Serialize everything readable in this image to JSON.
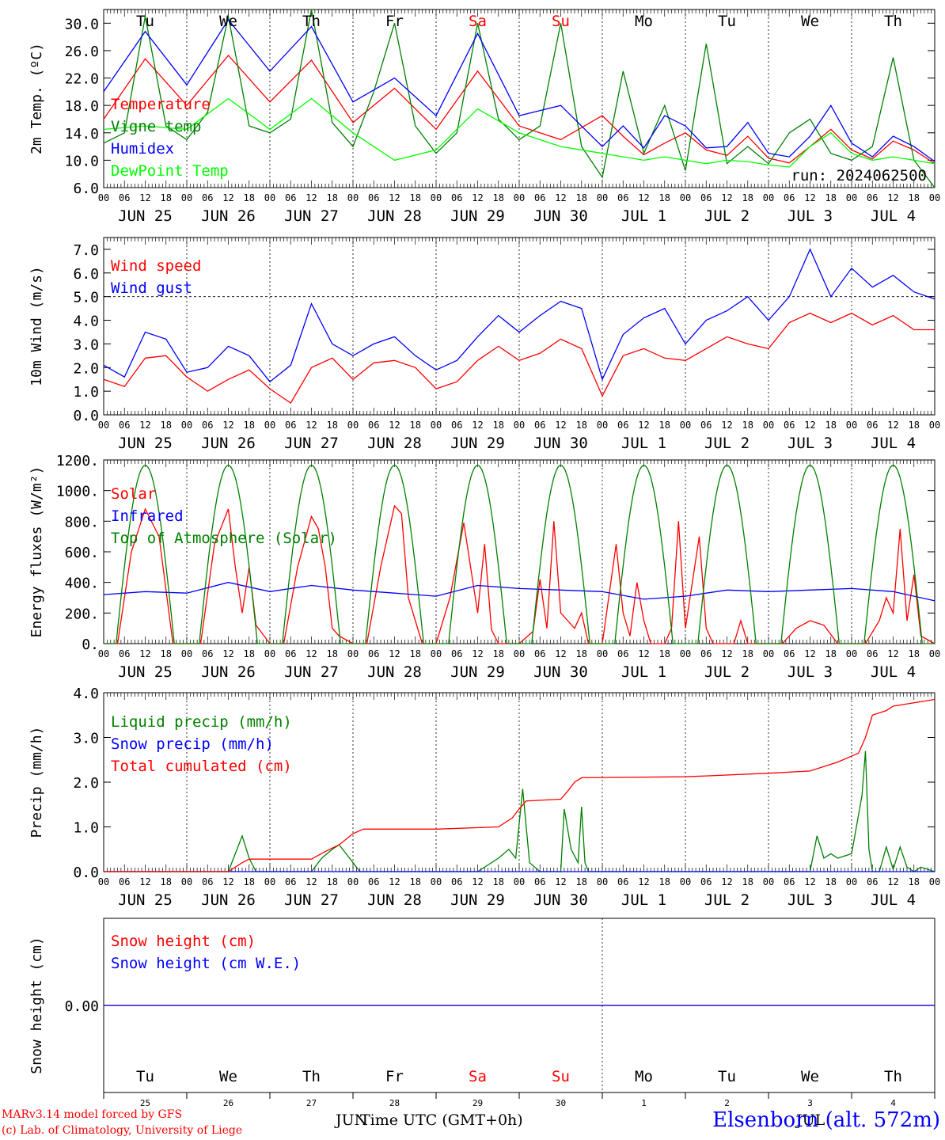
{
  "meta": {
    "station": "Elsenborn (alt. 572m)",
    "credit_line1": "MARv3.14 model forced by GFS",
    "credit_line2": "(c) Lab. of Climatology, University of Liege",
    "run_label": "run: 2024062500",
    "xlabel": "Time UTC (GMT+0h)",
    "footer_month_left": "JUN",
    "footer_month_right": "JUL"
  },
  "axis": {
    "hour_ticks": [
      "00",
      "06",
      "12",
      "18"
    ],
    "day_labels": [
      "JUN 25",
      "JUN 26",
      "JUN 27",
      "JUN 28",
      "JUN 29",
      "JUN 30",
      "JUL  1",
      "JUL  2",
      "JUL  3",
      "JUL  4"
    ],
    "weekdays": [
      "Tu",
      "We",
      "Th",
      "Fr",
      "Sa",
      "Su",
      "Mo",
      "Tu",
      "We",
      "Th"
    ],
    "weekday_colors": [
      "#000000",
      "#000000",
      "#000000",
      "#000000",
      "#ff0000",
      "#ff0000",
      "#000000",
      "#000000",
      "#000000",
      "#000000"
    ],
    "day_numbers": [
      "25",
      "26",
      "27",
      "28",
      "29",
      "30",
      "1",
      "2",
      "3",
      "4"
    ],
    "x_range_hours": [
      0,
      240
    ]
  },
  "chart_data": [
    {
      "type": "line",
      "ylabel": "2m Temp. (ºC)",
      "ylim": [
        6,
        32
      ],
      "yticks": [
        "6.0",
        "10.0",
        "14.0",
        "18.0",
        "22.0",
        "26.0",
        "30.0"
      ],
      "show_weekdays": true,
      "series": [
        {
          "name": "Temperature",
          "color": "#ff0000",
          "x": [
            0,
            12,
            24,
            36,
            48,
            60,
            72,
            84,
            96,
            108,
            120,
            132,
            144,
            150,
            156,
            162,
            168,
            174,
            180,
            186,
            192,
            198,
            204,
            210,
            216,
            222,
            228,
            234,
            240
          ],
          "values": [
            16.0,
            24.8,
            18.0,
            25.3,
            18.5,
            24.6,
            15.5,
            20.5,
            14.5,
            23.0,
            15.0,
            13.0,
            16.5,
            13.5,
            10.8,
            12.5,
            14.0,
            11.5,
            10.7,
            13.5,
            10.3,
            9.6,
            12.0,
            14.5,
            11.5,
            10.2,
            12.8,
            11.5,
            9.5
          ]
        },
        {
          "name": "Vigne temp",
          "color": "#008000",
          "x": [
            0,
            6,
            12,
            18,
            24,
            30,
            36,
            42,
            48,
            54,
            60,
            66,
            72,
            78,
            84,
            90,
            96,
            102,
            108,
            114,
            120,
            126,
            132,
            138,
            144,
            150,
            156,
            162,
            168,
            174,
            180,
            186,
            192,
            198,
            204,
            210,
            216,
            222,
            228,
            234,
            240
          ],
          "values": [
            12.5,
            14.0,
            31.0,
            15.0,
            13.0,
            17.0,
            31.0,
            15.0,
            14.0,
            16.0,
            32.0,
            15.5,
            12.0,
            20.0,
            30.0,
            15.0,
            11.0,
            14.0,
            30.0,
            16.0,
            13.0,
            15.0,
            30.0,
            12.0,
            7.5,
            23.0,
            11.0,
            18.0,
            8.5,
            27.0,
            9.5,
            12.0,
            9.5,
            14.0,
            16.0,
            11.0,
            10.0,
            12.0,
            25.0,
            10.0,
            6.0
          ]
        },
        {
          "name": "Humidex",
          "color": "#0000ff",
          "x": [
            0,
            12,
            24,
            36,
            48,
            60,
            72,
            84,
            96,
            108,
            120,
            132,
            144,
            150,
            156,
            162,
            168,
            174,
            180,
            186,
            192,
            198,
            204,
            210,
            216,
            222,
            228,
            234,
            240
          ],
          "values": [
            20.0,
            28.8,
            21.0,
            30.5,
            23.0,
            29.5,
            18.5,
            22.0,
            16.5,
            28.5,
            16.5,
            18.0,
            12.0,
            15.0,
            11.8,
            16.5,
            15.0,
            11.8,
            12.0,
            15.5,
            11.0,
            10.5,
            13.5,
            18.0,
            12.5,
            10.5,
            13.5,
            12.0,
            9.8
          ]
        },
        {
          "name": "DewPoint Temp",
          "color": "#00ff00",
          "x": [
            0,
            12,
            24,
            36,
            48,
            60,
            72,
            84,
            96,
            108,
            120,
            132,
            144,
            150,
            156,
            162,
            168,
            174,
            180,
            186,
            192,
            198,
            204,
            210,
            216,
            222,
            228,
            234,
            240
          ],
          "values": [
            14.5,
            15.0,
            14.5,
            19.0,
            14.5,
            19.0,
            14.0,
            10.0,
            11.5,
            17.5,
            14.0,
            12.0,
            11.0,
            10.5,
            10.0,
            10.5,
            10.0,
            9.5,
            10.0,
            9.8,
            9.3,
            9.0,
            12.0,
            14.0,
            11.0,
            10.0,
            10.5,
            10.0,
            9.5
          ]
        }
      ]
    },
    {
      "type": "line",
      "ylabel": "10m Wind (m/s)",
      "ylim": [
        0,
        7.5
      ],
      "yticks": [
        "0.0",
        "1.0",
        "2.0",
        "3.0",
        "4.0",
        "5.0",
        "6.0",
        "7.0"
      ],
      "dashed_y": 5.0,
      "show_weekdays": false,
      "series": [
        {
          "name": "Wind speed",
          "color": "#ff0000",
          "x": [
            0,
            6,
            12,
            18,
            24,
            30,
            36,
            42,
            48,
            54,
            60,
            66,
            72,
            78,
            84,
            90,
            96,
            102,
            108,
            114,
            120,
            126,
            132,
            138,
            144,
            150,
            156,
            162,
            168,
            174,
            180,
            186,
            192,
            198,
            204,
            210,
            216,
            222,
            228,
            234,
            240
          ],
          "values": [
            1.5,
            1.2,
            2.4,
            2.5,
            1.6,
            1.0,
            1.5,
            1.9,
            1.1,
            0.5,
            2.0,
            2.4,
            1.5,
            2.2,
            2.3,
            2.0,
            1.1,
            1.4,
            2.3,
            2.9,
            2.3,
            2.6,
            3.2,
            2.8,
            0.8,
            2.5,
            2.8,
            2.4,
            2.3,
            2.8,
            3.3,
            3.0,
            2.8,
            3.9,
            4.3,
            3.9,
            4.3,
            3.8,
            4.2,
            3.6,
            3.6
          ]
        },
        {
          "name": "Wind gust",
          "color": "#0000ff",
          "x": [
            0,
            6,
            12,
            18,
            24,
            30,
            36,
            42,
            48,
            54,
            60,
            66,
            72,
            78,
            84,
            90,
            96,
            102,
            108,
            114,
            120,
            126,
            132,
            138,
            144,
            150,
            156,
            162,
            168,
            174,
            180,
            186,
            192,
            198,
            204,
            210,
            216,
            222,
            228,
            234,
            240
          ],
          "values": [
            2.1,
            1.6,
            3.5,
            3.2,
            1.8,
            2.0,
            2.9,
            2.5,
            1.4,
            2.1,
            4.7,
            3.0,
            2.5,
            3.0,
            3.3,
            2.5,
            1.9,
            2.3,
            3.3,
            4.2,
            3.5,
            4.2,
            4.8,
            4.5,
            1.5,
            3.4,
            4.1,
            4.5,
            3.0,
            4.0,
            4.4,
            5.0,
            4.0,
            5.0,
            7.0,
            5.0,
            6.2,
            5.4,
            5.9,
            5.2,
            4.9
          ]
        }
      ]
    },
    {
      "type": "line",
      "ylabel": "Energy fluxes (W/m²)",
      "ylim": [
        0,
        1200
      ],
      "yticks": [
        "0.",
        "200.",
        "400.",
        "600.",
        "800.",
        "1000.",
        "1200."
      ],
      "show_weekdays": false,
      "series": [
        {
          "name": "Solar",
          "color": "#ff0000",
          "x": [
            0,
            4,
            8,
            12,
            16,
            20,
            24,
            28,
            32,
            36,
            38,
            40,
            42,
            44,
            48,
            52,
            56,
            60,
            62,
            64,
            66,
            68,
            72,
            76,
            80,
            84,
            86,
            88,
            92,
            96,
            100,
            104,
            108,
            110,
            112,
            114,
            116,
            120,
            124,
            126,
            128,
            130,
            132,
            134,
            136,
            138,
            140,
            144,
            148,
            150,
            152,
            154,
            156,
            158,
            160,
            162,
            164,
            166,
            168,
            172,
            174,
            176,
            178,
            180,
            182,
            184,
            186,
            188,
            192,
            196,
            200,
            204,
            208,
            212,
            216,
            220,
            224,
            226,
            228,
            230,
            232,
            234,
            236,
            240
          ],
          "values": [
            0,
            0,
            600,
            880,
            700,
            0,
            0,
            0,
            650,
            880,
            500,
            200,
            500,
            120,
            0,
            0,
            500,
            830,
            750,
            500,
            100,
            50,
            0,
            0,
            500,
            900,
            850,
            300,
            0,
            0,
            300,
            790,
            200,
            650,
            90,
            0,
            0,
            0,
            80,
            420,
            100,
            800,
            200,
            150,
            100,
            200,
            0,
            0,
            650,
            200,
            50,
            400,
            150,
            0,
            0,
            0,
            100,
            800,
            100,
            700,
            100,
            0,
            0,
            0,
            0,
            150,
            0,
            0,
            0,
            0,
            100,
            150,
            120,
            0,
            0,
            0,
            150,
            300,
            200,
            750,
            150,
            450,
            50,
            0
          ]
        },
        {
          "name": "Infrared",
          "color": "#0000ff",
          "x": [
            0,
            12,
            24,
            36,
            48,
            60,
            72,
            84,
            96,
            108,
            120,
            132,
            144,
            156,
            168,
            180,
            192,
            204,
            216,
            228,
            240
          ],
          "values": [
            320,
            340,
            330,
            400,
            340,
            380,
            350,
            330,
            310,
            380,
            360,
            350,
            340,
            290,
            310,
            350,
            340,
            350,
            360,
            340,
            280
          ]
        },
        {
          "name": "Top of Atmosphere (Solar)",
          "color": "#008000",
          "x": [],
          "values": [],
          "daily_peak": 1165,
          "rise_hour": 3.6,
          "set_hour": 20.4
        }
      ]
    },
    {
      "type": "line",
      "ylabel": "Precip (mm/h)",
      "ylim": [
        0,
        4.0
      ],
      "yticks": [
        "0.0",
        "1.0",
        "2.0",
        "3.0",
        "4.0"
      ],
      "show_weekdays": false,
      "series": [
        {
          "name": "Liquid precip (mm/h)",
          "color": "#008000",
          "x": [
            0,
            36,
            38,
            40,
            42,
            44,
            48,
            60,
            63,
            66,
            68,
            70,
            72,
            74,
            96,
            108,
            114,
            117,
            119,
            121,
            123,
            126,
            132,
            133,
            135,
            137,
            138,
            139,
            140,
            144,
            168,
            192,
            204,
            206,
            208,
            210,
            212,
            216,
            219,
            220,
            221,
            222,
            224,
            226,
            228,
            230,
            232,
            234,
            236,
            240
          ],
          "values": [
            0,
            0,
            0.4,
            0.8,
            0.3,
            0,
            0,
            0,
            0.3,
            0.5,
            0.6,
            0.4,
            0.2,
            0,
            0,
            0,
            0.3,
            0.5,
            0.3,
            1.85,
            0.2,
            0,
            0,
            1.4,
            0.5,
            0.2,
            1.45,
            0.2,
            0,
            0,
            0,
            0,
            0,
            0.8,
            0.3,
            0.4,
            0.3,
            0.4,
            1.7,
            2.7,
            0.5,
            0,
            0,
            0.55,
            0.05,
            0.55,
            0.1,
            0,
            0.1,
            0
          ]
        },
        {
          "name": "Snow precip (mm/h)",
          "color": "#0000ff",
          "x": [
            0,
            240
          ],
          "values": [
            0,
            0
          ]
        },
        {
          "name": "Total cumulated (cm)",
          "color": "#ff0000",
          "x": [
            0,
            36,
            40,
            42,
            60,
            64,
            68,
            72,
            75,
            96,
            114,
            118,
            120,
            122,
            132,
            134,
            136,
            138,
            168,
            192,
            204,
            212,
            218,
            220,
            222,
            226,
            228,
            240
          ],
          "values": [
            0,
            0,
            0.2,
            0.28,
            0.28,
            0.45,
            0.6,
            0.85,
            0.95,
            0.95,
            1.0,
            1.2,
            1.4,
            1.58,
            1.62,
            1.8,
            2.0,
            2.1,
            2.12,
            2.2,
            2.25,
            2.45,
            2.65,
            3.0,
            3.5,
            3.6,
            3.7,
            3.85
          ]
        }
      ]
    },
    {
      "type": "line",
      "ylabel": "Snow height (cm)",
      "ylim": [
        -1,
        1
      ],
      "yticks": [
        "0.00"
      ],
      "show_weekdays": true,
      "series": [
        {
          "name": "Snow height (cm)",
          "color": "#ff0000",
          "x": [
            0,
            240
          ],
          "values": [
            0,
            0
          ]
        },
        {
          "name": "Snow height (cm W.E.)",
          "color": "#0000ff",
          "x": [
            0,
            240
          ],
          "values": [
            0,
            0
          ]
        }
      ]
    }
  ]
}
